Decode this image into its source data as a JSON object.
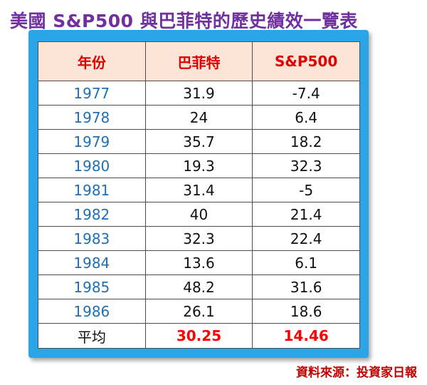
{
  "title": "美國 S&P500 與巴菲特的歷史績效一覽表",
  "table": {
    "headers": [
      "年份",
      "巴菲特",
      "S&P500"
    ],
    "rows": [
      [
        "1977",
        "31.9",
        "-7.4"
      ],
      [
        "1978",
        "24",
        "6.4"
      ],
      [
        "1979",
        "35.7",
        "18.2"
      ],
      [
        "1980",
        "19.3",
        "32.3"
      ],
      [
        "1981",
        "31.4",
        "-5"
      ],
      [
        "1982",
        "40",
        "21.4"
      ],
      [
        "1983",
        "32.3",
        "22.4"
      ],
      [
        "1984",
        "13.6",
        "6.1"
      ],
      [
        "1985",
        "48.2",
        "31.6"
      ],
      [
        "1986",
        "26.1",
        "18.6"
      ]
    ],
    "footer": {
      "label": "平均",
      "buffett": "30.25",
      "sp500": "14.46"
    }
  },
  "source": "資料來源：投資家日報",
  "colors": {
    "title": "#7030a0",
    "frame": "#2aa6e8",
    "header_bg": "#fce4d6",
    "header_text": "#e00000",
    "year_text": "#1f6fb4",
    "average_values": "#ff0000",
    "source_text": "#c00000"
  }
}
